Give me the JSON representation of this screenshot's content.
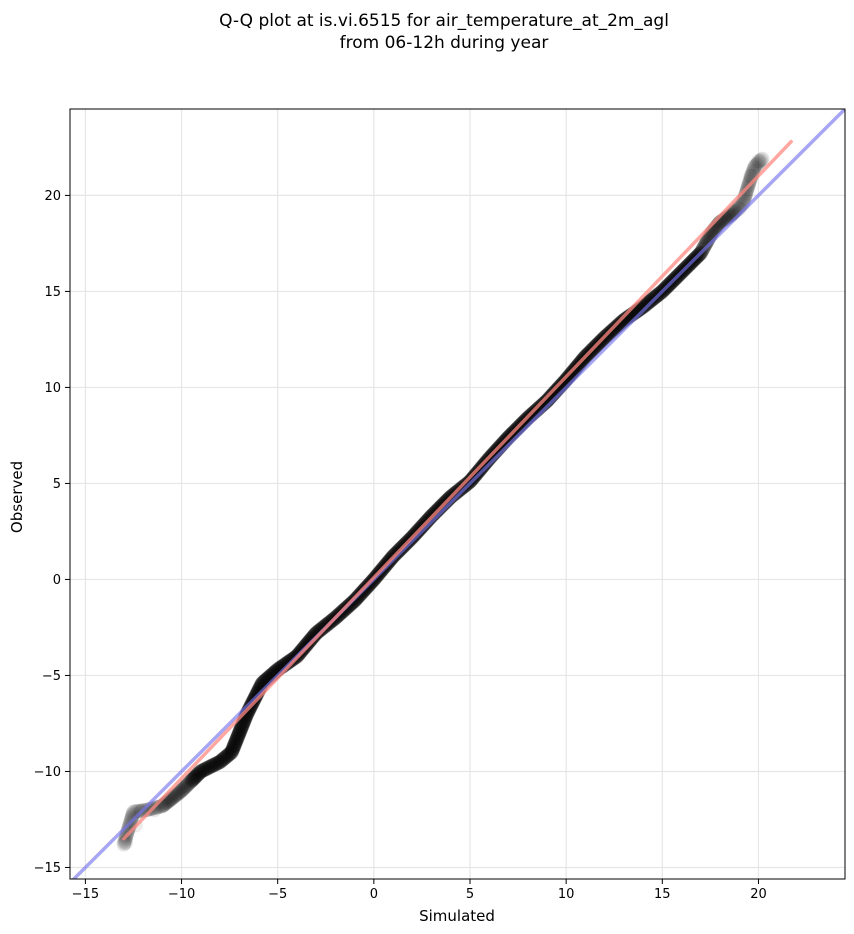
{
  "chart_data": {
    "type": "scatter",
    "title": [
      "Q-Q plot at is.vi.6515 for air_temperature_at_2m_agl",
      "from 06-12h during year"
    ],
    "xlabel": "Simulated",
    "ylabel": "Observed",
    "xlim": [
      -15.8,
      24.5
    ],
    "ylim": [
      -15.6,
      24.5
    ],
    "xticks": [
      -15,
      -10,
      -5,
      0,
      5,
      10,
      15,
      20
    ],
    "yticks": [
      -15,
      -10,
      -5,
      0,
      5,
      10,
      15,
      20
    ],
    "xtick_labels": [
      "−15",
      "−10",
      "−5",
      "0",
      "5",
      "10",
      "15",
      "20"
    ],
    "ytick_labels": [
      "−15",
      "−10",
      "−5",
      "0",
      "5",
      "10",
      "15",
      "20"
    ],
    "grid": true,
    "reference_line": {
      "color": "#7777ee",
      "x": [
        -15.8,
        24.5
      ],
      "y": [
        -15.8,
        24.5
      ]
    },
    "fit_line": {
      "color": "#ff8a80",
      "x": [
        -13.0,
        21.7
      ],
      "y": [
        -13.5,
        22.8
      ]
    },
    "quantile_path": [
      [
        -13.0,
        -13.8
      ],
      [
        -12.5,
        -12.1
      ],
      [
        -11.8,
        -12.0
      ],
      [
        -11.0,
        -11.8
      ],
      [
        -10.0,
        -11.0
      ],
      [
        -9.0,
        -10.0
      ],
      [
        -8.0,
        -9.5
      ],
      [
        -7.4,
        -9.0
      ],
      [
        -7.0,
        -8.0
      ],
      [
        -6.6,
        -7.0
      ],
      [
        -6.2,
        -6.2
      ],
      [
        -5.8,
        -5.4
      ],
      [
        -5.0,
        -4.7
      ],
      [
        -4.0,
        -4.0
      ],
      [
        -3.0,
        -2.8
      ],
      [
        -2.0,
        -2.0
      ],
      [
        -1.0,
        -1.1
      ],
      [
        0.0,
        0.0
      ],
      [
        1.0,
        1.2
      ],
      [
        2.0,
        2.2
      ],
      [
        3.0,
        3.3
      ],
      [
        4.0,
        4.3
      ],
      [
        5.0,
        5.1
      ],
      [
        6.0,
        6.3
      ],
      [
        7.0,
        7.4
      ],
      [
        8.0,
        8.4
      ],
      [
        9.0,
        9.3
      ],
      [
        10.0,
        10.4
      ],
      [
        11.0,
        11.6
      ],
      [
        12.0,
        12.6
      ],
      [
        13.0,
        13.5
      ],
      [
        14.0,
        14.2
      ],
      [
        15.0,
        15.0
      ],
      [
        16.0,
        16.0
      ],
      [
        17.0,
        17.0
      ],
      [
        17.6,
        18.1
      ],
      [
        18.0,
        18.6
      ],
      [
        18.6,
        19.0
      ],
      [
        19.2,
        19.6
      ],
      [
        19.5,
        20.6
      ],
      [
        19.8,
        21.5
      ],
      [
        20.2,
        21.9
      ]
    ],
    "outliers": [
      [
        -12.9,
        -13.7
      ],
      [
        -12.4,
        -12.8
      ],
      [
        -12.1,
        -12.1
      ],
      [
        -11.4,
        -12.0
      ],
      [
        19.0,
        19.3
      ],
      [
        19.6,
        21.0
      ],
      [
        20.0,
        21.8
      ]
    ]
  }
}
